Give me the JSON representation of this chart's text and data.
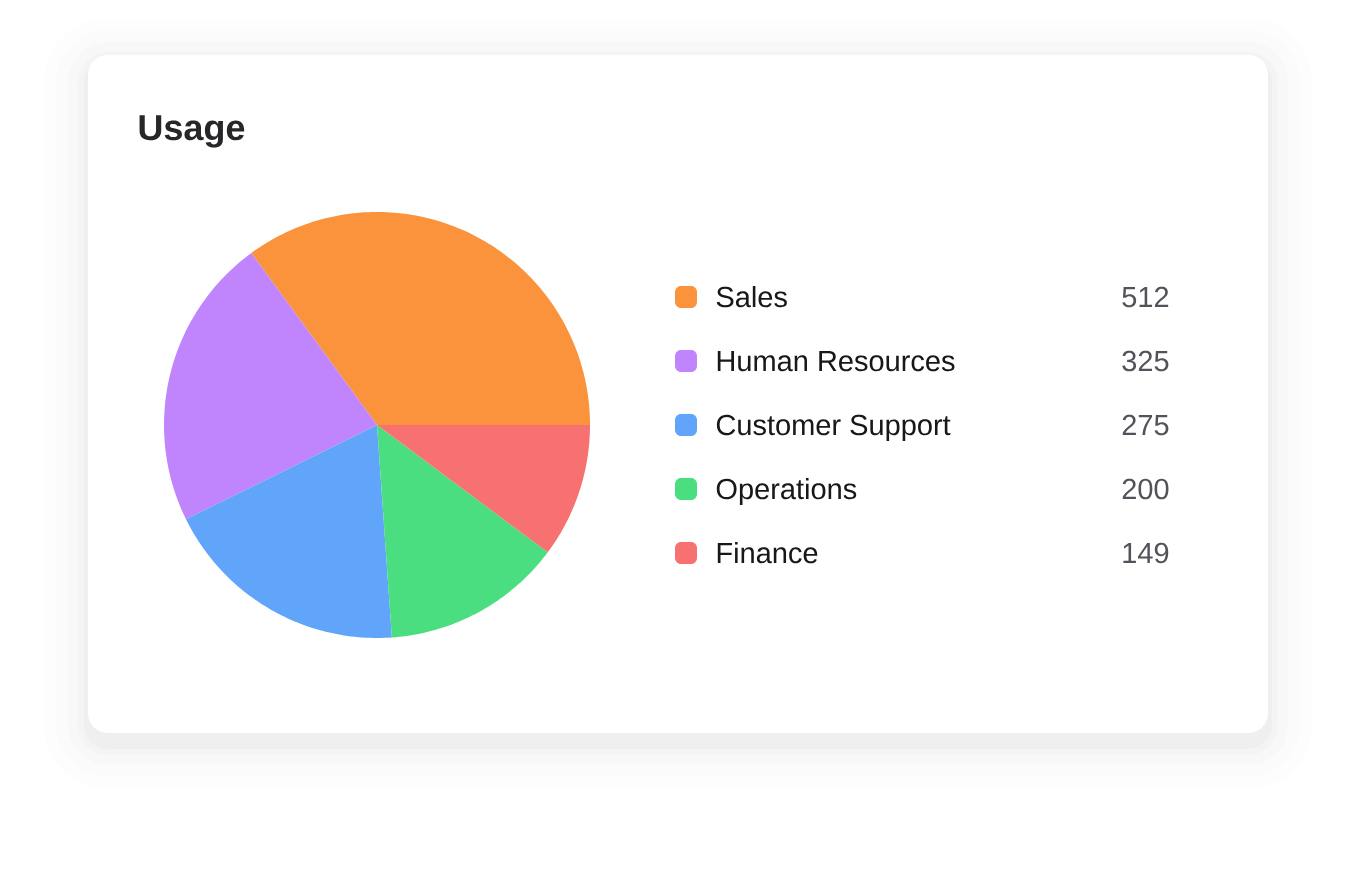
{
  "chart_data": {
    "type": "pie",
    "title": "Usage",
    "categories": [
      "Sales",
      "Human Resources",
      "Customer Support",
      "Operations",
      "Finance"
    ],
    "values": [
      512,
      325,
      275,
      200,
      149
    ],
    "colors": [
      "#fb923c",
      "#c084fc",
      "#60a5fa",
      "#4ade80",
      "#f87171"
    ],
    "legend": "right",
    "data_labels": true
  }
}
